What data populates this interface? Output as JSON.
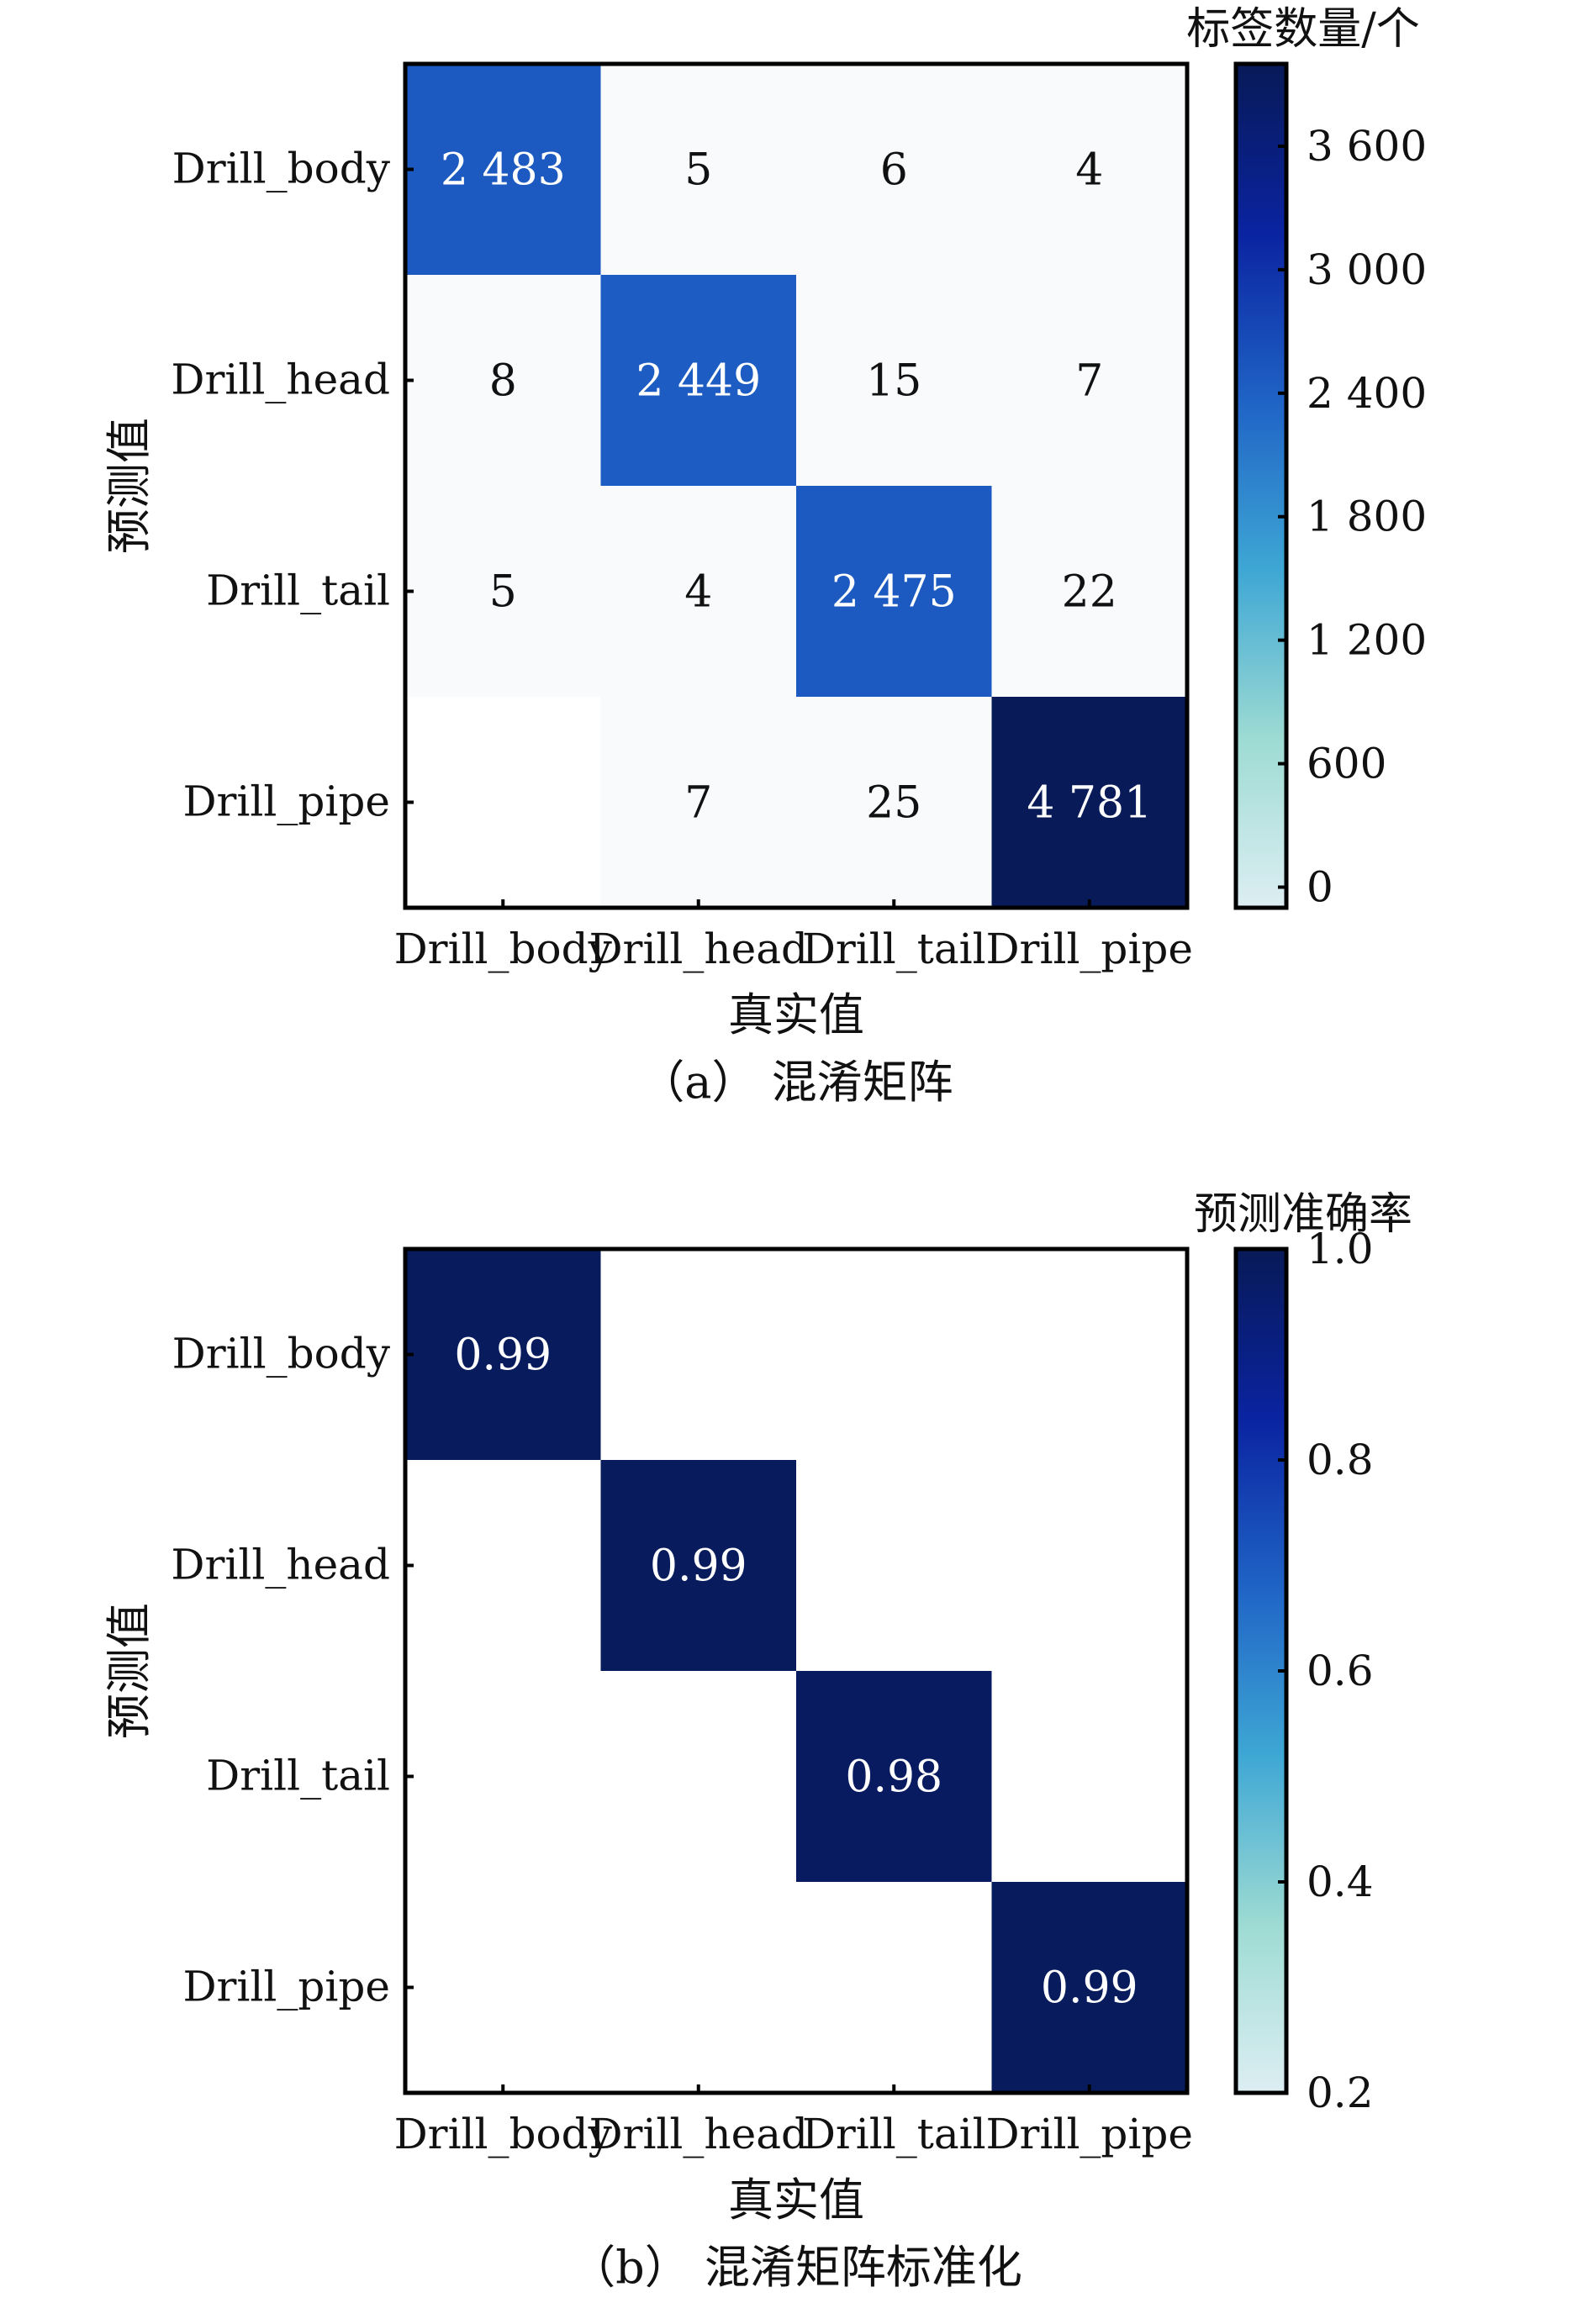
{
  "chart_data": [
    {
      "type": "heatmap",
      "title": "",
      "caption": "（a） 混淆矩阵",
      "xlabel": "真实值",
      "ylabel": "预测值",
      "x_categories": [
        "Drill_body",
        "Drill_head",
        "Drill_tail",
        "Drill_pipe"
      ],
      "y_categories": [
        "Drill_body",
        "Drill_head",
        "Drill_tail",
        "Drill_pipe"
      ],
      "values": [
        [
          2483,
          5,
          6,
          4
        ],
        [
          8,
          2449,
          15,
          7
        ],
        [
          5,
          4,
          2475,
          22
        ],
        [
          null,
          7,
          25,
          4781
        ]
      ],
      "cell_labels": [
        [
          "2 483",
          "5",
          "6",
          "4"
        ],
        [
          "8",
          "2 449",
          "15",
          "7"
        ],
        [
          "5",
          "4",
          "2 475",
          "22"
        ],
        [
          "",
          "7",
          "25",
          "4 781"
        ]
      ],
      "colorbar": {
        "title": "标签数量/个",
        "range": [
          -100,
          4000
        ],
        "ticks": [
          0,
          600,
          1200,
          1800,
          2400,
          3000,
          3600
        ],
        "tick_labels": [
          "0",
          "600",
          "1 200",
          "1 800",
          "2 400",
          "3 000",
          "3 600"
        ]
      }
    },
    {
      "type": "heatmap",
      "title": "",
      "caption": "（b） 混淆矩阵标准化",
      "xlabel": "真实值",
      "ylabel": "预测值",
      "x_categories": [
        "Drill_body",
        "Drill_head",
        "Drill_tail",
        "Drill_pipe"
      ],
      "y_categories": [
        "Drill_body",
        "Drill_head",
        "Drill_tail",
        "Drill_pipe"
      ],
      "values": [
        [
          0.99,
          0,
          0,
          0
        ],
        [
          0,
          0.99,
          0,
          0
        ],
        [
          0,
          0,
          0.98,
          0
        ],
        [
          0,
          0,
          0,
          0.99
        ]
      ],
      "cell_labels": [
        [
          "0.99",
          "",
          "",
          ""
        ],
        [
          "",
          "0.99",
          "",
          ""
        ],
        [
          "",
          "",
          "0.98",
          ""
        ],
        [
          "",
          "",
          "",
          "0.99"
        ]
      ],
      "colorbar": {
        "title": "预测准确率",
        "range": [
          0.2,
          1.0
        ],
        "ticks": [
          0.2,
          0.4,
          0.6,
          0.8,
          1.0
        ],
        "tick_labels": [
          "0.2",
          "0.4",
          "0.6",
          "0.8",
          "1.0"
        ]
      }
    }
  ],
  "colors": {
    "scale": [
      "#ddeef3",
      "#9ddbd3",
      "#3ea7d4",
      "#1f63c6",
      "#0a23a0",
      "#081a57"
    ],
    "frame": "#000000",
    "text_dark": "#111111",
    "text_light": "#ffffff"
  }
}
